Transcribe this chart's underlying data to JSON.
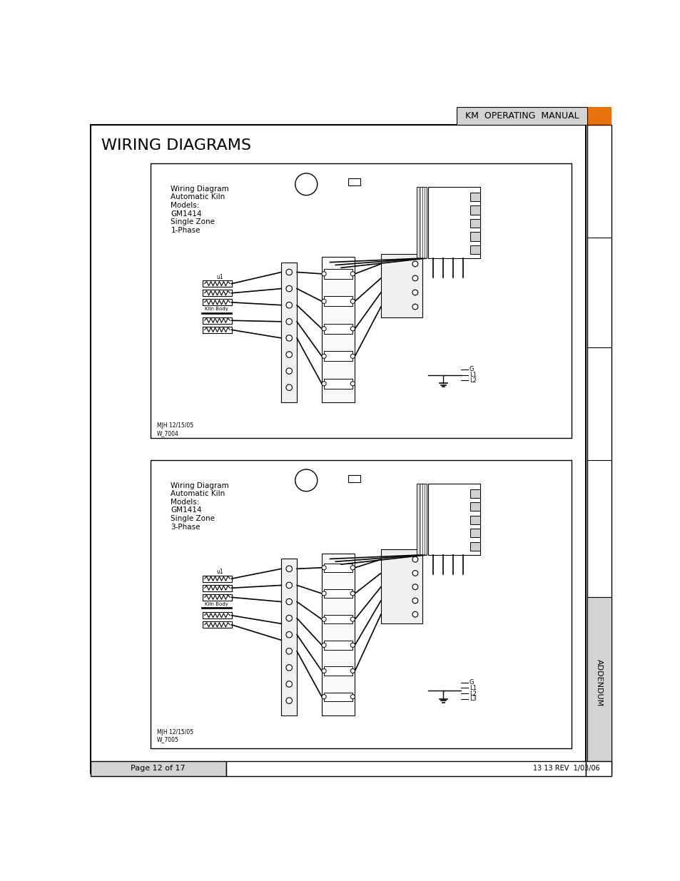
{
  "page_title": "WIRING DIAGRAMS",
  "header_text": "KM  OPERATING  MANUAL",
  "header_bg": "#d3d3d3",
  "orange_color": "#e8720c",
  "page_bg": "#ffffff",
  "border_color": "#000000",
  "footer_left": "Page 12 of 17",
  "footer_right": "13 13 REV  1/03/06",
  "footer_bg": "#d3d3d3",
  "sidebar_text": "ADDENDUM",
  "sidebar_bg": "#d3d3d3",
  "diagram1_title": "Wiring Diagram\nAutomatic Kiln\nModels:\nGM1414\nSingle Zone\n1-Phase",
  "diagram2_title": "Wiring Diagram\nAutomatic Kiln\nModels:\nGM1414\nSingle Zone\n3-Phase",
  "diagram1_credit": "MJH 12/15/05\nW_7004",
  "diagram2_credit": "MJH 12/15/05\nW_7005"
}
